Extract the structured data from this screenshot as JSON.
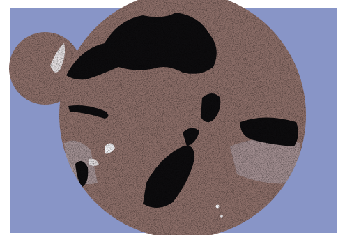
{
  "image": {
    "colors": {
      "page": "#ffffff",
      "background": "#8895c7",
      "subject": "#8c6e68",
      "shadow": "#0d0c0e",
      "highlight": "#f5f5f8",
      "haze": "#b8b2bc"
    }
  }
}
